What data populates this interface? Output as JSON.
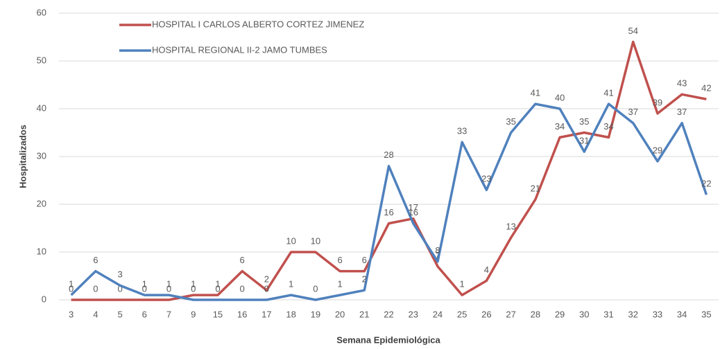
{
  "chart_data": {
    "type": "line",
    "x_label": "Semana Epidemiológica",
    "y_label": "Hospitalizados",
    "categories": [
      "3",
      "4",
      "5",
      "6",
      "7",
      "9",
      "15",
      "16",
      "17",
      "18",
      "19",
      "20",
      "21",
      "22",
      "23",
      "24",
      "25",
      "26",
      "27",
      "28",
      "29",
      "30",
      "31",
      "32",
      "33",
      "34",
      "35"
    ],
    "series": [
      {
        "name": "HOSPITAL I CARLOS ALBERTO CORTEZ JIMENEZ",
        "color": "#c0504d",
        "values": [
          0,
          0,
          0,
          0,
          0,
          1,
          1,
          6,
          2,
          10,
          10,
          6,
          6,
          16,
          17,
          7,
          1,
          4,
          13,
          21,
          34,
          35,
          34,
          54,
          39,
          43,
          42
        ]
      },
      {
        "name": "HOSPITAL REGIONAL II-2 JAMO TUMBES",
        "color": "#4f81bd",
        "values": [
          1,
          6,
          3,
          1,
          1,
          0,
          0,
          0,
          0,
          1,
          0,
          1,
          2,
          28,
          16,
          8,
          33,
          23,
          35,
          41,
          40,
          31,
          41,
          37,
          29,
          37,
          22
        ]
      }
    ],
    "ylim": [
      0,
      60
    ],
    "yticks": [
      0,
      10,
      20,
      30,
      40,
      50,
      60
    ],
    "grid": true,
    "legend": "top-left"
  }
}
